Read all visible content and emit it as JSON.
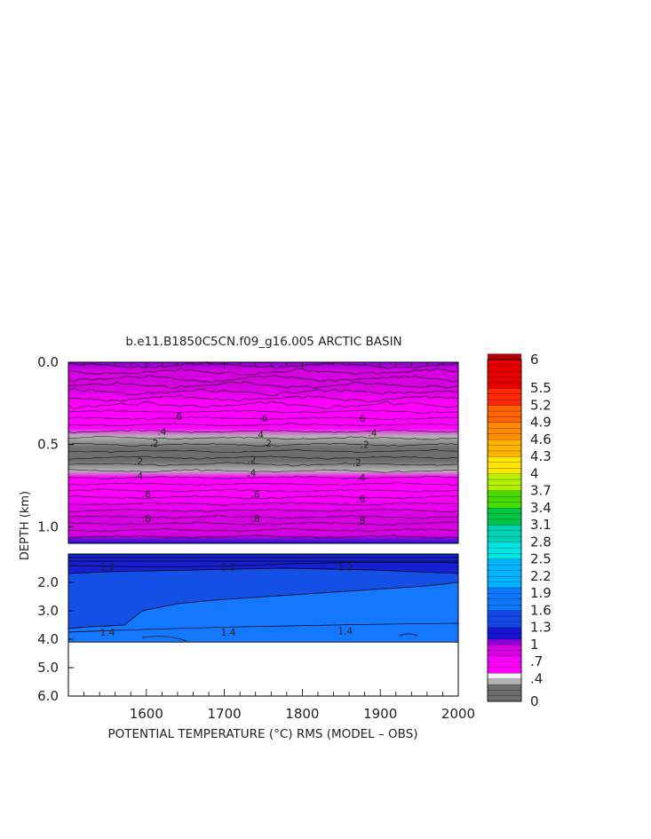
{
  "chart_data": {
    "type": "heatmap",
    "title": "b.e11.B1850C5CN.f09_g16.005 ARCTIC BASIN",
    "xlabel": "POTENTIAL TEMPERATURE (°C) RMS (MODEL – OBS)",
    "ylabel": "DEPTH (km)",
    "xlim": [
      1500,
      2000
    ],
    "x_ticks": [
      "1600",
      "1700",
      "1800",
      "1900",
      "2000"
    ],
    "panels": [
      {
        "name": "upper",
        "ylim": [
          0,
          1.1
        ],
        "y_ticks": [
          {
            "value": 0.0,
            "label": "0.0"
          },
          {
            "value": 0.5,
            "label": "0.5"
          },
          {
            "value": 1.0,
            "label": "1.0"
          }
        ],
        "profile": [
          {
            "depth": 0.0,
            "value": 1.0
          },
          {
            "depth": 0.05,
            "value": 0.85
          },
          {
            "depth": 0.15,
            "value": 0.75
          },
          {
            "depth": 0.25,
            "value": 0.7
          },
          {
            "depth": 0.33,
            "value": 0.6
          },
          {
            "depth": 0.4,
            "value": 0.45
          },
          {
            "depth": 0.45,
            "value": 0.35
          },
          {
            "depth": 0.52,
            "value": 0.22
          },
          {
            "depth": 0.6,
            "value": 0.2
          },
          {
            "depth": 0.66,
            "value": 0.35
          },
          {
            "depth": 0.7,
            "value": 0.45
          },
          {
            "depth": 0.8,
            "value": 0.6
          },
          {
            "depth": 0.95,
            "value": 0.75
          },
          {
            "depth": 1.05,
            "value": 0.9
          },
          {
            "depth": 1.1,
            "value": 1.05
          }
        ],
        "contour_labels": [
          {
            "x": 1640,
            "depth": 0.33,
            "text": ".6"
          },
          {
            "x": 1620,
            "depth": 0.42,
            "text": ".4"
          },
          {
            "x": 1610,
            "depth": 0.49,
            "text": ".2"
          },
          {
            "x": 1590,
            "depth": 0.6,
            "text": ".2"
          },
          {
            "x": 1590,
            "depth": 0.69,
            "text": ".4"
          },
          {
            "x": 1600,
            "depth": 0.8,
            "text": ".6"
          },
          {
            "x": 1600,
            "depth": 0.95,
            "text": ".8"
          },
          {
            "x": 1750,
            "depth": 0.34,
            "text": ".6"
          },
          {
            "x": 1745,
            "depth": 0.44,
            "text": ".4"
          },
          {
            "x": 1755,
            "depth": 0.49,
            "text": ".2"
          },
          {
            "x": 1735,
            "depth": 0.59,
            "text": ".2"
          },
          {
            "x": 1735,
            "depth": 0.67,
            "text": ".4"
          },
          {
            "x": 1740,
            "depth": 0.8,
            "text": ".6"
          },
          {
            "x": 1740,
            "depth": 0.95,
            "text": ".8"
          },
          {
            "x": 1875,
            "depth": 0.34,
            "text": ".6"
          },
          {
            "x": 1890,
            "depth": 0.43,
            "text": ".4"
          },
          {
            "x": 1880,
            "depth": 0.5,
            "text": ".2"
          },
          {
            "x": 1870,
            "depth": 0.61,
            "text": ".2"
          },
          {
            "x": 1875,
            "depth": 0.7,
            "text": ".4"
          },
          {
            "x": 1875,
            "depth": 0.83,
            "text": ".6"
          },
          {
            "x": 1875,
            "depth": 0.96,
            "text": ".8"
          }
        ]
      },
      {
        "name": "lower",
        "ylim": [
          1.0,
          6.0
        ],
        "y_ticks": [
          {
            "value": 2.0,
            "label": "2.0"
          },
          {
            "value": 3.0,
            "label": "3.0"
          },
          {
            "value": 4.0,
            "label": "4.0"
          },
          {
            "value": 5.0,
            "label": "5.0"
          },
          {
            "value": 6.0,
            "label": "6.0"
          }
        ],
        "data_bottom": 4.1,
        "contour_labels": [
          {
            "x": 1550,
            "depth": 1.45,
            "text": "1.2"
          },
          {
            "x": 1705,
            "depth": 1.45,
            "text": "1.2"
          },
          {
            "x": 1855,
            "depth": 1.45,
            "text": "1.2"
          },
          {
            "x": 1550,
            "depth": 3.75,
            "text": "1.4"
          },
          {
            "x": 1705,
            "depth": 3.75,
            "text": "1.4"
          },
          {
            "x": 1855,
            "depth": 3.7,
            "text": "1.4"
          }
        ]
      }
    ],
    "colorbar": {
      "min": 0,
      "max": 6,
      "labels": [
        "6",
        "5.5",
        "5.2",
        "4.9",
        "4.6",
        "4.3",
        "4",
        "3.7",
        "3.4",
        "3.1",
        "2.8",
        "2.5",
        "2.2",
        "1.9",
        "1.6",
        "1.3",
        "1",
        ".7",
        ".4",
        "0"
      ],
      "stops": [
        {
          "value": 0.0,
          "color": "#6e6e6e"
        },
        {
          "value": 0.3,
          "color": "#b4b4b4"
        },
        {
          "value": 0.4,
          "color": "#f0f0f0"
        },
        {
          "value": 0.45,
          "color": "#ff00ff"
        },
        {
          "value": 0.75,
          "color": "#d600e0"
        },
        {
          "value": 1.0,
          "color": "#8a00d8"
        },
        {
          "value": 1.05,
          "color": "#1414d2"
        },
        {
          "value": 1.3,
          "color": "#1448e6"
        },
        {
          "value": 1.6,
          "color": "#0a78ff"
        },
        {
          "value": 2.0,
          "color": "#00b4ff"
        },
        {
          "value": 2.5,
          "color": "#00e6e6"
        },
        {
          "value": 2.8,
          "color": "#00d2b4"
        },
        {
          "value": 3.1,
          "color": "#00c846"
        },
        {
          "value": 3.4,
          "color": "#46dc00"
        },
        {
          "value": 3.7,
          "color": "#b4f000"
        },
        {
          "value": 4.0,
          "color": "#ffe600"
        },
        {
          "value": 4.3,
          "color": "#ffb400"
        },
        {
          "value": 4.6,
          "color": "#ff8c00"
        },
        {
          "value": 4.9,
          "color": "#ff6400"
        },
        {
          "value": 5.2,
          "color": "#ff2800"
        },
        {
          "value": 5.5,
          "color": "#e60000"
        },
        {
          "value": 6.0,
          "color": "#b40000"
        }
      ]
    }
  }
}
